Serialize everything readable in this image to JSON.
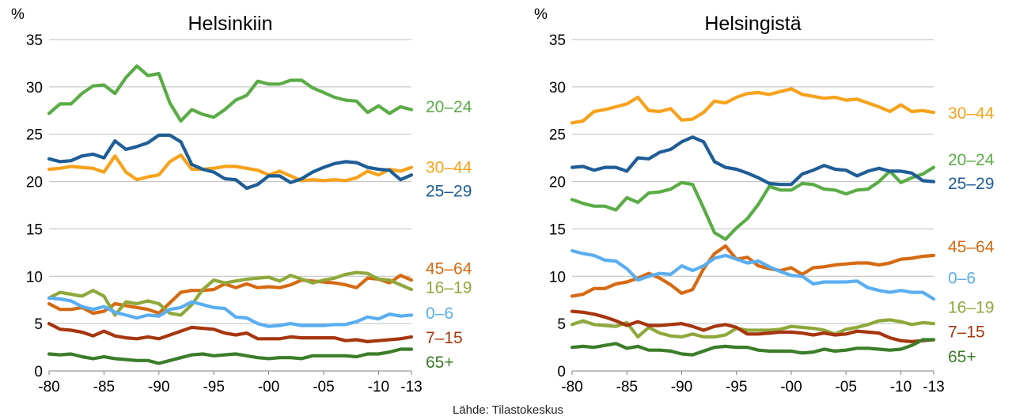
{
  "source": "Lähde: Tilastokeskus",
  "chart_data": [
    {
      "type": "line",
      "title": "Helsinkiin",
      "ylabel": "%",
      "ylim": [
        0,
        35
      ],
      "yticks": [
        0,
        5,
        10,
        15,
        20,
        25,
        30,
        35
      ],
      "xlim": [
        1980,
        2013
      ],
      "xticks": [
        {
          "value": 1980,
          "label": "-80"
        },
        {
          "value": 1985,
          "label": "-85"
        },
        {
          "value": 1990,
          "label": "-90"
        },
        {
          "value": 1995,
          "label": "-95"
        },
        {
          "value": 2000,
          "label": "-00"
        },
        {
          "value": 2005,
          "label": "-05"
        },
        {
          "value": 2010,
          "label": "-10"
        },
        {
          "value": 2013,
          "label": "-13"
        }
      ],
      "grid": true,
      "x": [
        1980,
        1981,
        1982,
        1983,
        1984,
        1985,
        1986,
        1987,
        1988,
        1989,
        1990,
        1991,
        1992,
        1993,
        1994,
        1995,
        1996,
        1997,
        1998,
        1999,
        2000,
        2001,
        2002,
        2003,
        2004,
        2005,
        2006,
        2007,
        2008,
        2009,
        2010,
        2011,
        2012,
        2013
      ],
      "series": [
        {
          "name": "20–24",
          "color": "#5aac46",
          "label_y": 28.0,
          "values": [
            27.2,
            28.2,
            28.2,
            29.3,
            30.1,
            30.2,
            29.3,
            31.0,
            32.2,
            31.2,
            31.4,
            28.3,
            26.4,
            27.6,
            27.1,
            26.8,
            27.6,
            28.6,
            29.1,
            30.6,
            30.3,
            30.3,
            30.7,
            30.7,
            29.9,
            29.4,
            28.9,
            28.6,
            28.5,
            27.3,
            28.0,
            27.2,
            27.9,
            27.6
          ]
        },
        {
          "name": "30–44",
          "color": "#f7a21b",
          "label_y": 21.6,
          "values": [
            21.3,
            21.4,
            21.6,
            21.5,
            21.4,
            21.0,
            22.7,
            21.0,
            20.2,
            20.5,
            20.7,
            22.1,
            22.8,
            21.3,
            21.3,
            21.4,
            21.6,
            21.6,
            21.4,
            21.2,
            20.7,
            21.1,
            20.6,
            20.1,
            20.2,
            20.1,
            20.2,
            20.1,
            20.4,
            21.1,
            20.7,
            21.3,
            21.1,
            21.5
          ]
        },
        {
          "name": "25–29",
          "color": "#1e5d96",
          "label_y": 19.1,
          "values": [
            22.4,
            22.1,
            22.2,
            22.7,
            22.9,
            22.5,
            24.3,
            23.4,
            23.7,
            24.1,
            24.9,
            24.9,
            24.2,
            21.8,
            21.3,
            21.0,
            20.3,
            20.2,
            19.3,
            19.7,
            20.6,
            20.6,
            19.9,
            20.3,
            21.0,
            21.5,
            21.9,
            22.1,
            22.0,
            21.5,
            21.3,
            21.2,
            20.2,
            20.7
          ]
        },
        {
          "name": "45–64",
          "color": "#d66a12",
          "label_y": 10.9,
          "values": [
            7.1,
            6.5,
            6.5,
            6.7,
            6.1,
            6.3,
            7.1,
            6.9,
            6.7,
            6.5,
            6.1,
            7.2,
            8.3,
            8.5,
            8.5,
            8.6,
            9.2,
            8.8,
            9.2,
            8.8,
            8.9,
            8.8,
            9.1,
            9.6,
            9.5,
            9.4,
            9.3,
            9.1,
            8.8,
            9.8,
            9.7,
            9.3,
            10.1,
            9.6
          ]
        },
        {
          "name": "16–19",
          "color": "#8fa83b",
          "label_y": 8.9,
          "values": [
            7.7,
            8.3,
            8.1,
            7.9,
            8.5,
            7.9,
            5.9,
            7.3,
            7.1,
            7.4,
            7.1,
            6.1,
            5.9,
            7.0,
            8.6,
            9.6,
            9.3,
            9.5,
            9.7,
            9.8,
            9.9,
            9.5,
            10.1,
            9.7,
            9.3,
            9.6,
            9.8,
            10.2,
            10.4,
            10.3,
            9.7,
            9.6,
            9.1,
            8.6
          ]
        },
        {
          "name": "0–6",
          "color": "#5aaef0",
          "label_y": 6.2,
          "values": [
            7.7,
            7.6,
            7.4,
            6.8,
            6.5,
            6.8,
            6.2,
            5.9,
            5.6,
            5.9,
            5.8,
            6.5,
            6.7,
            7.3,
            7.0,
            6.7,
            6.6,
            5.7,
            5.6,
            5.0,
            4.7,
            4.8,
            5.0,
            4.8,
            4.8,
            4.8,
            4.9,
            4.9,
            5.2,
            5.7,
            5.5,
            6.0,
            5.8,
            5.9
          ]
        },
        {
          "name": "7–15",
          "color": "#a6360f",
          "label_y": 3.6,
          "values": [
            5.0,
            4.4,
            4.3,
            4.1,
            3.7,
            4.2,
            3.7,
            3.5,
            3.4,
            3.6,
            3.4,
            3.8,
            4.2,
            4.6,
            4.5,
            4.4,
            4.0,
            3.8,
            4.0,
            3.4,
            3.4,
            3.4,
            3.6,
            3.5,
            3.5,
            3.5,
            3.5,
            3.2,
            3.3,
            3.1,
            3.2,
            3.3,
            3.4,
            3.6
          ]
        },
        {
          "name": "65+",
          "color": "#3b7d2a",
          "label_y": 1.0,
          "values": [
            1.8,
            1.7,
            1.8,
            1.5,
            1.3,
            1.5,
            1.3,
            1.2,
            1.1,
            1.1,
            0.8,
            1.1,
            1.4,
            1.7,
            1.8,
            1.6,
            1.7,
            1.8,
            1.6,
            1.4,
            1.3,
            1.4,
            1.4,
            1.3,
            1.6,
            1.6,
            1.6,
            1.6,
            1.5,
            1.8,
            1.8,
            2.0,
            2.3,
            2.3
          ]
        }
      ]
    },
    {
      "type": "line",
      "title": "Helsingistä",
      "ylabel": "%",
      "ylim": [
        0,
        35
      ],
      "yticks": [
        0,
        5,
        10,
        15,
        20,
        25,
        30,
        35
      ],
      "xlim": [
        1980,
        2013
      ],
      "xticks": [
        {
          "value": 1980,
          "label": "-80"
        },
        {
          "value": 1985,
          "label": "-85"
        },
        {
          "value": 1990,
          "label": "-90"
        },
        {
          "value": 1995,
          "label": "-95"
        },
        {
          "value": 2000,
          "label": "-00"
        },
        {
          "value": 2005,
          "label": "-05"
        },
        {
          "value": 2010,
          "label": "-10"
        },
        {
          "value": 2013,
          "label": "-13"
        }
      ],
      "grid": true,
      "x": [
        1980,
        1981,
        1982,
        1983,
        1984,
        1985,
        1986,
        1987,
        1988,
        1989,
        1990,
        1991,
        1992,
        1993,
        1994,
        1995,
        1996,
        1997,
        1998,
        1999,
        2000,
        2001,
        2002,
        2003,
        2004,
        2005,
        2006,
        2007,
        2008,
        2009,
        2010,
        2011,
        2012,
        2013
      ],
      "series": [
        {
          "name": "30–44",
          "color": "#f7a21b",
          "label_y": 27.3,
          "values": [
            26.2,
            26.4,
            27.4,
            27.6,
            27.9,
            28.2,
            28.9,
            27.5,
            27.4,
            27.7,
            26.5,
            26.6,
            27.3,
            28.5,
            28.3,
            28.9,
            29.3,
            29.4,
            29.2,
            29.5,
            29.8,
            29.2,
            29.0,
            28.8,
            28.9,
            28.6,
            28.7,
            28.3,
            27.9,
            27.4,
            28.1,
            27.4,
            27.5,
            27.3
          ]
        },
        {
          "name": "20–24",
          "color": "#5aac46",
          "label_y": 22.4,
          "values": [
            18.1,
            17.7,
            17.4,
            17.4,
            17.0,
            18.3,
            17.8,
            18.8,
            18.9,
            19.2,
            19.9,
            19.7,
            17.2,
            14.6,
            13.9,
            15.1,
            16.1,
            17.6,
            19.5,
            19.1,
            19.1,
            19.8,
            19.7,
            19.2,
            19.1,
            18.7,
            19.1,
            19.2,
            20.0,
            21.1,
            19.9,
            20.4,
            20.8,
            21.5
          ]
        },
        {
          "name": "25–29",
          "color": "#1e5d96",
          "label_y": 19.9,
          "values": [
            21.5,
            21.6,
            21.2,
            21.5,
            21.5,
            21.1,
            22.5,
            22.4,
            23.1,
            23.4,
            24.2,
            24.7,
            24.2,
            22.1,
            21.5,
            21.3,
            20.9,
            20.4,
            19.8,
            19.7,
            19.7,
            20.8,
            21.2,
            21.7,
            21.3,
            21.2,
            20.6,
            21.1,
            21.4,
            21.1,
            21.1,
            20.9,
            20.1,
            20.0
          ]
        },
        {
          "name": "45–64",
          "color": "#d66a12",
          "label_y": 13.2,
          "values": [
            7.9,
            8.1,
            8.7,
            8.7,
            9.2,
            9.4,
            9.8,
            10.3,
            9.8,
            9.1,
            8.2,
            8.6,
            10.8,
            12.4,
            13.2,
            11.8,
            12.0,
            11.1,
            10.8,
            10.6,
            10.9,
            10.2,
            10.9,
            11.0,
            11.2,
            11.3,
            11.4,
            11.4,
            11.2,
            11.4,
            11.8,
            11.9,
            12.1,
            12.2
          ]
        },
        {
          "name": "0–6",
          "color": "#5aaef0",
          "label_y": 9.9,
          "values": [
            12.7,
            12.4,
            12.2,
            11.7,
            11.6,
            10.8,
            9.6,
            10.0,
            10.3,
            10.2,
            11.1,
            10.6,
            11.1,
            11.9,
            12.2,
            11.8,
            11.4,
            11.6,
            11.0,
            10.5,
            10.1,
            10.0,
            9.2,
            9.4,
            9.4,
            9.4,
            9.5,
            8.8,
            8.5,
            8.3,
            8.5,
            8.3,
            8.3,
            7.6
          ]
        },
        {
          "name": "16–19",
          "color": "#8fa83b",
          "label_y": 6.8,
          "values": [
            4.9,
            5.3,
            4.9,
            4.8,
            4.7,
            5.1,
            3.6,
            4.6,
            4.0,
            3.7,
            3.6,
            3.9,
            3.6,
            3.6,
            3.8,
            4.5,
            4.3,
            4.3,
            4.3,
            4.4,
            4.7,
            4.6,
            4.5,
            4.3,
            3.9,
            4.4,
            4.6,
            4.9,
            5.3,
            5.4,
            5.2,
            4.9,
            5.1,
            5.0
          ]
        },
        {
          "name": "7–15",
          "color": "#a6360f",
          "label_y": 4.2,
          "values": [
            6.3,
            6.2,
            6.0,
            5.7,
            5.3,
            4.8,
            5.2,
            4.8,
            4.8,
            4.9,
            5.0,
            4.7,
            4.3,
            4.7,
            4.9,
            4.6,
            3.9,
            3.9,
            4.0,
            4.1,
            4.1,
            4.0,
            3.8,
            4.0,
            3.8,
            3.9,
            4.2,
            4.1,
            4.0,
            3.5,
            3.2,
            3.1,
            3.2,
            3.3
          ]
        },
        {
          "name": "65+",
          "color": "#3b7d2a",
          "label_y": 1.6,
          "values": [
            2.5,
            2.6,
            2.5,
            2.7,
            2.9,
            2.4,
            2.6,
            2.2,
            2.2,
            2.1,
            1.8,
            1.7,
            2.1,
            2.5,
            2.6,
            2.5,
            2.5,
            2.2,
            2.1,
            2.1,
            2.1,
            1.9,
            2.0,
            2.3,
            2.1,
            2.2,
            2.4,
            2.4,
            2.3,
            2.2,
            2.3,
            2.7,
            3.3,
            3.3
          ]
        }
      ]
    }
  ]
}
